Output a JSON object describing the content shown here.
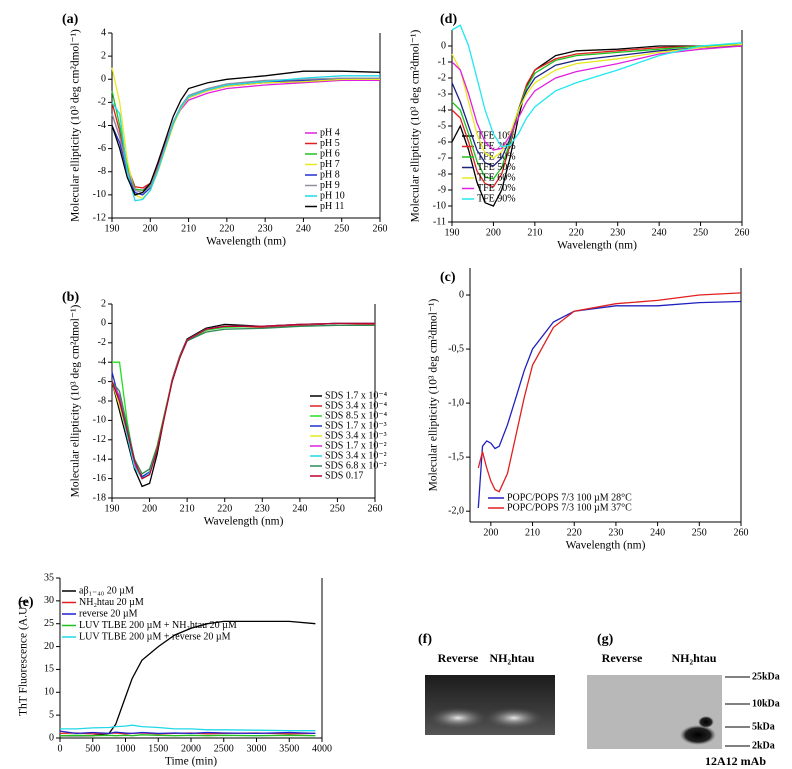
{
  "chart_data": [
    {
      "type": "line",
      "panel": "(a)",
      "x_label": "Wavelength (nm)",
      "y_label": "Molecular ellipticity (10³ deg cm²dmol⁻¹)",
      "xlim": [
        190,
        260
      ],
      "xticks": [
        190,
        200,
        210,
        220,
        230,
        240,
        250,
        260
      ],
      "ylim": [
        -12,
        4
      ],
      "yticks": [
        -12,
        -10,
        -8,
        -6,
        -4,
        -2,
        0,
        2,
        4
      ],
      "x": [
        190,
        192,
        194,
        196,
        198,
        200,
        202,
        204,
        206,
        208,
        210,
        215,
        220,
        230,
        240,
        250,
        260
      ],
      "series": [
        {
          "name": "pH 4",
          "color": "#e020e0",
          "values": [
            -3,
            -5,
            -8,
            -9.5,
            -9.6,
            -9,
            -7.5,
            -5.5,
            -3.8,
            -2.6,
            -1.8,
            -1.2,
            -0.8,
            -0.5,
            -0.3,
            -0.1,
            -0.1
          ]
        },
        {
          "name": "pH 5",
          "color": "#e02020",
          "values": [
            -2,
            -4.5,
            -7.5,
            -9.3,
            -9.4,
            -9,
            -7.6,
            -5.6,
            -3.7,
            -2.5,
            -1.6,
            -1,
            -0.6,
            -0.3,
            -0.2,
            0,
            0
          ]
        },
        {
          "name": "pH 6",
          "color": "#20c020",
          "values": [
            -1,
            -4,
            -7.5,
            -9.5,
            -9.6,
            -9.2,
            -7.8,
            -5.8,
            -3.8,
            -2.4,
            -1.5,
            -0.9,
            -0.5,
            -0.3,
            -0.2,
            0,
            0
          ]
        },
        {
          "name": "pH 7",
          "color": "#e8e820",
          "values": [
            1,
            -2,
            -7,
            -10,
            -10.3,
            -9.6,
            -8,
            -6,
            -4,
            -2.5,
            -1.6,
            -1,
            -0.6,
            -0.3,
            -0.2,
            0,
            0
          ]
        },
        {
          "name": "pH 8",
          "color": "#2030d0",
          "values": [
            -4,
            -5.5,
            -8,
            -9.8,
            -10,
            -9.4,
            -7.8,
            -5.8,
            -3.8,
            -2.4,
            -1.5,
            -0.9,
            -0.5,
            -0.2,
            -0.1,
            0.1,
            0.1
          ]
        },
        {
          "name": "pH 9",
          "color": "#9090a0",
          "values": [
            -3,
            -5,
            -7.8,
            -9.6,
            -9.8,
            -9.3,
            -7.7,
            -5.7,
            -3.7,
            -2.3,
            -1.4,
            -0.8,
            -0.4,
            -0.1,
            0,
            0.1,
            0.1
          ]
        },
        {
          "name": "pH 10",
          "color": "#20d8e8",
          "values": [
            -2,
            -3,
            -8,
            -10.5,
            -10.4,
            -9.6,
            -7.9,
            -5.8,
            -3.8,
            -2.4,
            -1.5,
            -0.9,
            -0.5,
            -0.2,
            0.1,
            0.3,
            0.3
          ]
        },
        {
          "name": "pH 11",
          "color": "#000000",
          "values": [
            -4,
            -6,
            -8.5,
            -10,
            -9.8,
            -9,
            -7.2,
            -5.2,
            -3.2,
            -1.8,
            -0.8,
            -0.3,
            0,
            0.3,
            0.7,
            0.7,
            0.6
          ]
        }
      ]
    },
    {
      "type": "line",
      "panel": "(d)",
      "x_label": "Wavelength (nm)",
      "y_label": "Molecular ellipticity (10³ deg cm²dmol⁻¹)",
      "xlim": [
        190,
        260
      ],
      "xticks": [
        190,
        200,
        210,
        220,
        230,
        240,
        250,
        260
      ],
      "ylim": [
        -11,
        1
      ],
      "yticks": [
        -11,
        -10,
        -9,
        -8,
        -7,
        -6,
        -5,
        -4,
        -3,
        -2,
        -1,
        0
      ],
      "x": [
        190,
        192,
        194,
        196,
        198,
        200,
        202,
        204,
        206,
        208,
        210,
        215,
        220,
        230,
        240,
        250,
        260
      ],
      "series": [
        {
          "name": "TFE 10%",
          "color": "#000000",
          "values": [
            -6,
            -5,
            -6.5,
            -8.5,
            -9.8,
            -10,
            -9,
            -7,
            -4.5,
            -2.5,
            -1.5,
            -0.6,
            -0.3,
            -0.2,
            0,
            0,
            0
          ]
        },
        {
          "name": "TFE 20%",
          "color": "#e02020",
          "values": [
            -4,
            -4.5,
            -6,
            -7.8,
            -8.6,
            -8.8,
            -8,
            -6.2,
            -4,
            -2.4,
            -1.5,
            -0.8,
            -0.5,
            -0.3,
            -0.1,
            0,
            0
          ]
        },
        {
          "name": "TFE 40%",
          "color": "#20c020",
          "values": [
            -3.5,
            -4,
            -5.5,
            -7.2,
            -8.2,
            -8.3,
            -7.6,
            -6,
            -4,
            -2.6,
            -1.7,
            -0.9,
            -0.6,
            -0.4,
            -0.2,
            0,
            0.1
          ]
        },
        {
          "name": "TFE 50%",
          "color": "#1a237e",
          "values": [
            -2.3,
            -3.5,
            -5,
            -6.5,
            -7.3,
            -7.5,
            -7,
            -5.8,
            -4,
            -2.8,
            -2,
            -1.2,
            -0.9,
            -0.6,
            -0.3,
            -0.1,
            0
          ]
        },
        {
          "name": "TFE 60%",
          "color": "#e8e820",
          "values": [
            -0.5,
            -1.5,
            -3.5,
            -5.5,
            -6.7,
            -7,
            -6.6,
            -5.5,
            -4,
            -3,
            -2.3,
            -1.5,
            -1.1,
            -0.8,
            -0.4,
            -0.1,
            0.1
          ]
        },
        {
          "name": "TFE 70%",
          "color": "#e020e0",
          "values": [
            -1,
            -1.5,
            -3,
            -4.8,
            -6,
            -6.5,
            -6.4,
            -5.6,
            -4.5,
            -3.5,
            -2.8,
            -2,
            -1.6,
            -1.1,
            -0.5,
            -0.2,
            0
          ]
        },
        {
          "name": "TFE 90%",
          "color": "#20e8f0",
          "values": [
            1,
            1.3,
            0,
            -2,
            -4,
            -5.5,
            -6.3,
            -6.2,
            -5.5,
            -4.5,
            -3.8,
            -2.8,
            -2.3,
            -1.5,
            -0.6,
            0,
            0.2
          ]
        }
      ]
    },
    {
      "type": "line",
      "panel": "(b)",
      "x_label": "Wavelength (nm)",
      "y_label": "Molecular ellipticity (10³ deg cm²dmol⁻¹)",
      "xlim": [
        190,
        260
      ],
      "xticks": [
        190,
        200,
        210,
        220,
        230,
        240,
        250,
        260
      ],
      "ylim": [
        -18,
        2
      ],
      "yticks": [
        -18,
        -16,
        -14,
        -12,
        -10,
        -8,
        -6,
        -4,
        -2,
        0,
        2
      ],
      "x": [
        190,
        192,
        194,
        196,
        198,
        200,
        202,
        204,
        206,
        208,
        210,
        215,
        220,
        230,
        240,
        250,
        260
      ],
      "series": [
        {
          "name": "SDS 1.7 x 10⁻⁴",
          "color": "#000000",
          "values": [
            -6,
            -9,
            -12,
            -15,
            -16.8,
            -16.5,
            -13.5,
            -9.5,
            -5.8,
            -3.4,
            -1.6,
            -0.5,
            -0.1,
            -0.3,
            -0.2,
            0,
            0
          ]
        },
        {
          "name": "SDS 3.4 x 10⁻⁴",
          "color": "#e02020",
          "values": [
            -6,
            -8,
            -11,
            -14,
            -15.8,
            -15.5,
            -13,
            -9.5,
            -6,
            -3.6,
            -1.8,
            -0.7,
            -0.3,
            -0.4,
            -0.2,
            0,
            -0.1
          ]
        },
        {
          "name": "SDS 8.5 x 10⁻⁴",
          "color": "#20e020",
          "values": [
            -4,
            -4,
            -10,
            -14.5,
            -16,
            -15.3,
            -12.8,
            -9.3,
            -6,
            -3.6,
            -1.7,
            -0.7,
            -0.4,
            -0.3,
            -0.1,
            0,
            0
          ]
        },
        {
          "name": "SDS 1.7 x 10⁻³",
          "color": "#2030d0",
          "values": [
            -5,
            -8,
            -11.5,
            -14.5,
            -15.8,
            -15.3,
            -12.8,
            -9.3,
            -5.9,
            -3.5,
            -1.7,
            -0.6,
            -0.3,
            -0.3,
            -0.1,
            0,
            0
          ]
        },
        {
          "name": "SDS 3.4 x 10⁻³",
          "color": "#e8e820",
          "values": [
            -6,
            -8.5,
            -11.5,
            -14.5,
            -15.5,
            -15,
            -12.6,
            -9.2,
            -5.9,
            -3.5,
            -1.7,
            -0.6,
            -0.3,
            -0.3,
            -0.1,
            0,
            0
          ]
        },
        {
          "name": "SDS 1.7 x 10⁻²",
          "color": "#e020e0",
          "values": [
            -6,
            -7.5,
            -11,
            -14.5,
            -16,
            -15.5,
            -13,
            -9.5,
            -6,
            -3.6,
            -1.7,
            -0.6,
            -0.3,
            -0.3,
            -0.1,
            0,
            0
          ]
        },
        {
          "name": "SDS 3.4 x 10⁻²",
          "color": "#20d8e8",
          "values": [
            -6,
            -8,
            -11.5,
            -14.8,
            -16,
            -15.4,
            -12.9,
            -9.4,
            -6,
            -3.6,
            -1.7,
            -0.6,
            -0.3,
            -0.3,
            -0.1,
            0,
            0
          ]
        },
        {
          "name": "SDS 6.8 x 10⁻²",
          "color": "#2e8b57",
          "values": [
            -6,
            -7,
            -10.5,
            -14,
            -15.5,
            -15,
            -12.7,
            -9.3,
            -6,
            -3.6,
            -1.8,
            -0.9,
            -0.6,
            -0.5,
            -0.3,
            -0.2,
            -0.2
          ]
        },
        {
          "name": "SDS 0.17",
          "color": "#c00030",
          "values": [
            -6,
            -8,
            -11,
            -14.2,
            -16,
            -15.6,
            -13.1,
            -9.6,
            -6,
            -3.6,
            -1.7,
            -0.6,
            -0.3,
            -0.3,
            -0.1,
            0,
            0
          ]
        }
      ]
    },
    {
      "type": "line",
      "panel": "(c)",
      "x_label": "Wavelength (nm)",
      "y_label": "Molecular ellipticity (10³ deg cm²dmol⁻¹)",
      "xlim": [
        195,
        260
      ],
      "xticks": [
        200,
        210,
        220,
        230,
        240,
        250,
        260
      ],
      "ylim": [
        -2.1,
        0.25
      ],
      "yticks": [
        {
          "value": -2,
          "label": "-2,0"
        },
        {
          "value": -1.5,
          "label": "-1,5"
        },
        {
          "value": -1,
          "label": "-1,0"
        },
        {
          "value": -0.5,
          "label": "-0,5"
        },
        0
      ],
      "x": [
        197,
        198,
        199,
        200,
        201,
        202,
        204,
        206,
        208,
        210,
        215,
        220,
        230,
        240,
        250,
        260
      ],
      "series": [
        {
          "name": "POPC/POPS 7/3 100 µM 28°C",
          "color": "#2020c0",
          "values": [
            -1.97,
            -1.4,
            -1.35,
            -1.37,
            -1.42,
            -1.4,
            -1.2,
            -0.95,
            -0.7,
            -0.5,
            -0.25,
            -0.15,
            -0.1,
            -0.1,
            -0.07,
            -0.06
          ]
        },
        {
          "name": "POPC/POPS 7/3 100 µM 37°C",
          "color": "#e02020",
          "values": [
            -1.6,
            -1.45,
            -1.6,
            -1.72,
            -1.8,
            -1.82,
            -1.65,
            -1.3,
            -0.95,
            -0.65,
            -0.3,
            -0.15,
            -0.08,
            -0.05,
            0,
            0.02
          ]
        }
      ]
    },
    {
      "type": "line",
      "panel": "(e)",
      "x_label": "Time (min)",
      "y_label": "ThT Fluorescence (A.U.)",
      "xlim": [
        0,
        4000
      ],
      "xticks": [
        0,
        500,
        1000,
        1500,
        2000,
        2500,
        3000,
        3500,
        4000
      ],
      "ylim": [
        0,
        35
      ],
      "yticks": [
        0,
        5,
        10,
        15,
        20,
        25,
        30,
        35
      ],
      "x": [
        0,
        250,
        500,
        750,
        850,
        1000,
        1100,
        1250,
        1500,
        1750,
        2000,
        2250,
        2500,
        3000,
        3500,
        3900
      ],
      "series": [
        {
          "name": "aβ₁₋₄₀ 20 µM",
          "color": "#000000",
          "values": [
            0.5,
            0.5,
            0.5,
            1,
            3,
            9,
            13,
            17,
            20,
            22.5,
            24,
            25,
            25.5,
            25.5,
            25.5,
            25
          ]
        },
        {
          "name": "NH₂htau 20 µM",
          "color": "#e02020",
          "values": [
            1,
            1.1,
            0.9,
            1,
            1.1,
            0.9,
            1,
            1.1,
            0.9,
            1,
            1.1,
            0.9,
            1,
            1.1,
            0.9,
            1
          ]
        },
        {
          "name": "reverse 20 µM",
          "color": "#2020d0",
          "values": [
            1.5,
            1,
            1.2,
            1,
            1.3,
            1.1,
            1,
            1.2,
            1,
            1.1,
            1,
            1.2,
            1.1,
            1,
            1.2,
            1
          ]
        },
        {
          "name": "LUV TLBE 200 µM + NH₂htau 20 µM",
          "color": "#20c020",
          "values": [
            0.5,
            0.6,
            0.5,
            0.6,
            0.5,
            0.6,
            0.5,
            0.7,
            0.6,
            0.5,
            0.6,
            0.5,
            0.6,
            0.5,
            0.6,
            0.5
          ]
        },
        {
          "name": "LUV TLBE 200 µM + reverse 20 µM",
          "color": "#20d8e8",
          "values": [
            2,
            2,
            2.2,
            2.3,
            2.5,
            2.6,
            2.8,
            2.5,
            2.3,
            2,
            2,
            1.8,
            1.8,
            1.7,
            1.6,
            1.6
          ]
        }
      ]
    }
  ],
  "gels": [
    {
      "panel": "(f)",
      "lanes": [
        "Reverse",
        "NH₂htau"
      ]
    },
    {
      "panel": "(g)",
      "lanes": [
        "Reverse",
        "NH₂htau"
      ],
      "markers": [
        "25kDa",
        "10kDa",
        "5kDa",
        "2kDa"
      ],
      "caption": "12A12 mAb"
    }
  ]
}
